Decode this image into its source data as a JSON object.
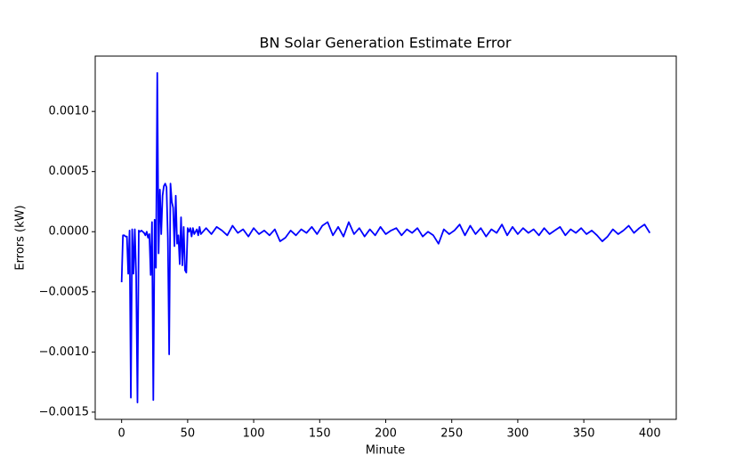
{
  "chart_data": {
    "type": "line",
    "title": "BN Solar Generation Estimate Error",
    "x_label": "Minute",
    "y_label": "Errors (kW)",
    "x": [
      0,
      1,
      2,
      3,
      4,
      5,
      6,
      7,
      8,
      9,
      10,
      11,
      12,
      13,
      14,
      15,
      16,
      17,
      18,
      19,
      20,
      21,
      22,
      23,
      24,
      25,
      26,
      27,
      28,
      29,
      30,
      31,
      32,
      33,
      34,
      35,
      36,
      37,
      38,
      39,
      40,
      41,
      42,
      43,
      44,
      45,
      46,
      47,
      48,
      49,
      50,
      51,
      52,
      53,
      54,
      55,
      56,
      57,
      58,
      59,
      60,
      64,
      68,
      72,
      76,
      80,
      84,
      88,
      92,
      96,
      100,
      104,
      108,
      112,
      116,
      120,
      124,
      128,
      132,
      136,
      140,
      144,
      148,
      152,
      156,
      160,
      164,
      168,
      172,
      176,
      180,
      184,
      188,
      192,
      196,
      200,
      204,
      208,
      212,
      216,
      220,
      224,
      228,
      232,
      236,
      240,
      244,
      248,
      252,
      256,
      260,
      264,
      268,
      272,
      276,
      280,
      284,
      288,
      292,
      296,
      300,
      304,
      308,
      312,
      316,
      320,
      324,
      328,
      332,
      336,
      340,
      344,
      348,
      352,
      356,
      360,
      364,
      368,
      372,
      376,
      380,
      384,
      388,
      392,
      396,
      400
    ],
    "series": [
      {
        "color": "#0000ff",
        "values": [
          -0.00042,
          -3e-05,
          -3e-05,
          -4e-05,
          -4e-05,
          -0.00035,
          1e-05,
          -0.00138,
          2e-05,
          -0.00035,
          2e-05,
          -0.00037,
          -0.00142,
          1e-05,
          0.0,
          1e-05,
          0.0,
          -1e-05,
          -3e-05,
          0.0,
          -5e-05,
          -2e-05,
          -0.00036,
          8e-05,
          -0.0014,
          0.0001,
          -0.0003,
          0.00132,
          -0.00018,
          0.00035,
          -2e-05,
          0.0003,
          0.00038,
          0.0004,
          0.00037,
          -5e-05,
          -0.00102,
          0.0004,
          0.00025,
          0.0002,
          -0.00012,
          0.0003,
          -0.0001,
          -3e-05,
          -0.00027,
          0.00012,
          -0.00028,
          4e-05,
          -0.00032,
          -0.00034,
          3e-05,
          0.0,
          3e-05,
          -4e-05,
          3e-05,
          -2e-05,
          0.0,
          2e-05,
          -3e-05,
          4e-05,
          -2e-05,
          3e-05,
          -2e-05,
          4e-05,
          1e-05,
          -3e-05,
          5e-05,
          -1e-05,
          2e-05,
          -4e-05,
          3e-05,
          -2e-05,
          1e-05,
          -3e-05,
          2e-05,
          -8e-05,
          -5e-05,
          1e-05,
          -3e-05,
          2e-05,
          -1e-05,
          4e-05,
          -2e-05,
          5e-05,
          8e-05,
          -3e-05,
          4e-05,
          -4e-05,
          8e-05,
          -2e-05,
          3e-05,
          -4e-05,
          2e-05,
          -3e-05,
          4e-05,
          -2e-05,
          1e-05,
          3e-05,
          -3e-05,
          2e-05,
          -1e-05,
          3e-05,
          -4e-05,
          0.0,
          -3e-05,
          -0.0001,
          2e-05,
          -2e-05,
          1e-05,
          6e-05,
          -3e-05,
          5e-05,
          -2e-05,
          3e-05,
          -4e-05,
          2e-05,
          -1e-05,
          6e-05,
          -3e-05,
          4e-05,
          -2e-05,
          3e-05,
          -1e-05,
          2e-05,
          -3e-05,
          3e-05,
          -2e-05,
          1e-05,
          4e-05,
          -3e-05,
          2e-05,
          -1e-05,
          3e-05,
          -2e-05,
          1e-05,
          -3e-05,
          -8e-05,
          -4e-05,
          2e-05,
          -2e-05,
          1e-05,
          5e-05,
          -1e-05,
          3e-05,
          6e-05,
          -1e-05
        ]
      }
    ],
    "xlim": [
      -20,
      420
    ],
    "xticks": [
      0,
      50,
      100,
      150,
      200,
      250,
      300,
      350,
      400
    ],
    "ylim": [
      -0.00156,
      0.00146
    ],
    "yticks": [
      {
        "value": -0.0015,
        "label": "−0.0015"
      },
      {
        "value": -0.001,
        "label": "−0.0010"
      },
      {
        "value": -0.0005,
        "label": "−0.0005"
      },
      {
        "value": 0,
        "label": "0.0000"
      },
      {
        "value": 0.0005,
        "label": "0.0005"
      },
      {
        "value": 0.001,
        "label": "0.0010"
      }
    ]
  }
}
